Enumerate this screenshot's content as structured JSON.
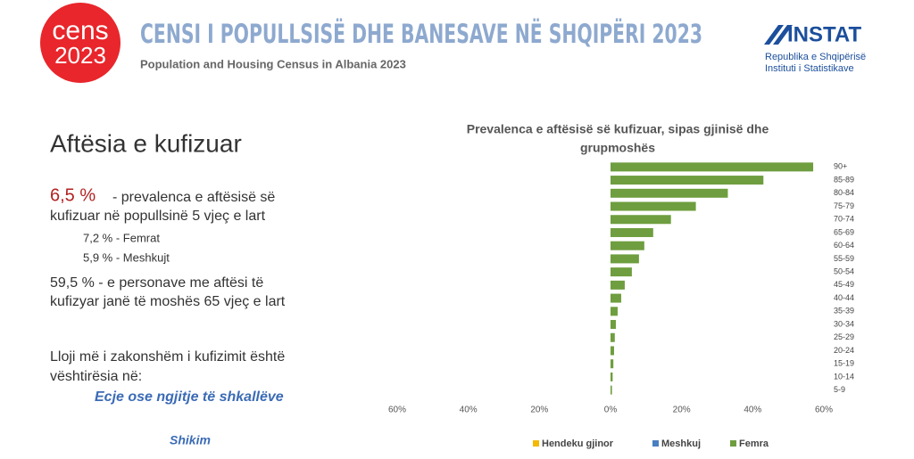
{
  "header": {
    "logo_top": "cens",
    "logo_bottom": "2023",
    "title": "CENSI I POPULLSISË DHE BANESAVE NË SHQIPËRI 2023",
    "subtitle": "Population and Housing Census in Albania 2023",
    "org": "INSTAT",
    "org_line1": "Republika e Shqipërisë",
    "org_line2": "Instituti i Statistikave"
  },
  "slide": {
    "heading": "Aftësia e kufizuar",
    "stat_main": "6,5 %",
    "stat_main_text": "- prevalenca e aftësisë së",
    "stat_main_text2": "kufizuar në popullsinë 5 vjeç e lart",
    "stat_female": "7,2  % - Femrat",
    "stat_male": "5,9 % - Meshkujt",
    "stat_old": "59,5 % -  e personave me aftësi të",
    "stat_old2": "kufizyar janë të moshës 65 vjeç e lart",
    "type_intro": "Lloji më i zakonshëm i kufizimit është",
    "type_intro2": "vështirësia në:",
    "type_1": "Ecje ose ngjitje të shkallëve",
    "type_2": "Shikim"
  },
  "chart_data": {
    "type": "hbar",
    "title_lines": [
      "Prevalenca e aftësisë së kufizuar, sipas gjinisë dhe",
      "grupmoshës"
    ],
    "categories": [
      "90+",
      "85-89",
      "80-84",
      "75-79",
      "70-74",
      "65-69",
      "60-64",
      "55-59",
      "50-54",
      "45-49",
      "40-44",
      "35-39",
      "30-34",
      "25-29",
      "20-24",
      "15-19",
      "10-14",
      "5-9"
    ],
    "series": [
      {
        "name": "Hendeku gjinor",
        "color": "#f5b800",
        "values": [
          null,
          null,
          null,
          null,
          null,
          null,
          null,
          null,
          null,
          null,
          null,
          null,
          null,
          null,
          null,
          null,
          null,
          null
        ]
      },
      {
        "name": "Meshkuj",
        "color": "#4a7fc1",
        "values": [
          null,
          null,
          null,
          null,
          null,
          null,
          null,
          null,
          null,
          null,
          null,
          null,
          null,
          null,
          null,
          null,
          null,
          null
        ]
      },
      {
        "name": "Femra",
        "color": "#6e9e3f",
        "values": [
          57,
          43,
          33,
          24,
          17,
          12,
          9.5,
          8,
          6,
          4,
          3,
          2,
          1.5,
          1.2,
          1,
          0.8,
          0.6,
          0.4
        ]
      }
    ],
    "xlim": [
      -60,
      60
    ],
    "xticks": [
      {
        "value": -60,
        "label": "60%"
      },
      {
        "value": -40,
        "label": "40%"
      },
      {
        "value": -20,
        "label": "20%"
      },
      {
        "value": 0,
        "label": "0%"
      },
      {
        "value": 20,
        "label": "20%"
      },
      {
        "value": 40,
        "label": "40%"
      },
      {
        "value": 60,
        "label": "60%"
      }
    ],
    "legend": "bottom"
  }
}
